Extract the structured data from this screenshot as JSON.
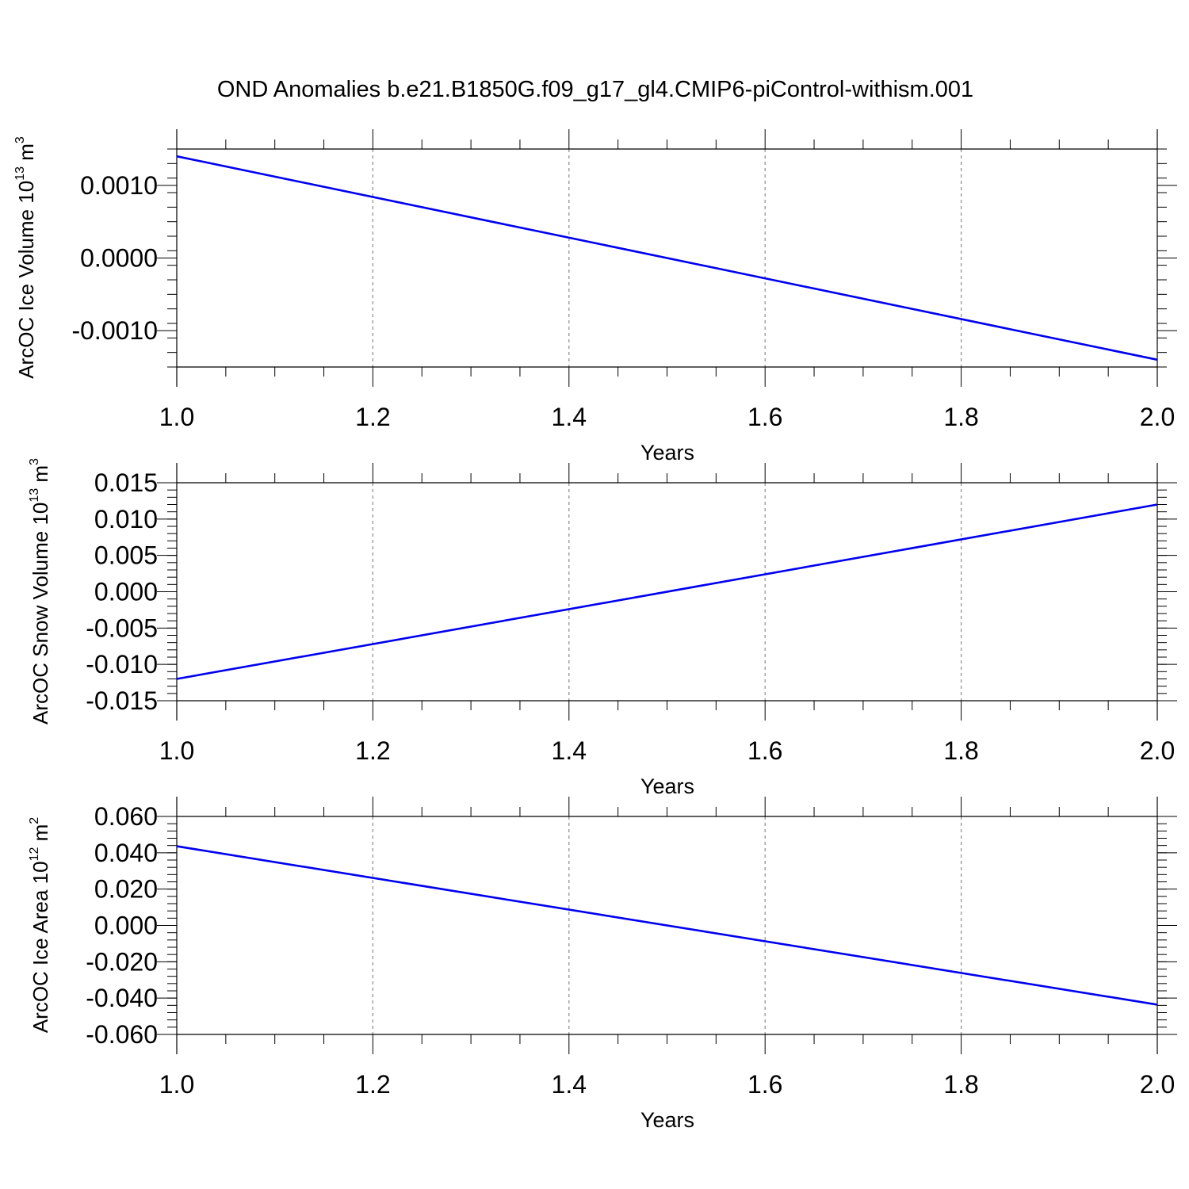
{
  "title": "OND Anomalies b.e21.B1850G.f09_g17_gl4.CMIP6-piControl-withism.001",
  "chart_data": [
    {
      "type": "line",
      "ylabel": {
        "text": "ArcOC Ice Volume 10",
        "sup": "13",
        "unit": " m",
        "unit_sup": "3"
      },
      "xlabel": "Years",
      "xlim": [
        1.0,
        2.0
      ],
      "ylim": [
        -0.0015,
        0.0015
      ],
      "x_ticks": [
        "1.0",
        "1.2",
        "1.4",
        "1.6",
        "1.8",
        "2.0"
      ],
      "y_ticks": [
        "-0.0010",
        "0.0000",
        "0.0010"
      ],
      "y_tick_values": [
        -0.001,
        0.0,
        0.001
      ],
      "x_minor_step": 0.05,
      "y_minor_step": 0.0002,
      "grid": "vertical-dashed",
      "series": [
        {
          "x": [
            1.0,
            2.0
          ],
          "values": [
            0.0014,
            -0.0014
          ],
          "color": "#0000ee"
        }
      ]
    },
    {
      "type": "line",
      "ylabel": {
        "text": "ArcOC Snow Volume 10",
        "sup": "13",
        "unit": " m",
        "unit_sup": "3"
      },
      "xlabel": "Years",
      "xlim": [
        1.0,
        2.0
      ],
      "ylim": [
        -0.015,
        0.015
      ],
      "x_ticks": [
        "1.0",
        "1.2",
        "1.4",
        "1.6",
        "1.8",
        "2.0"
      ],
      "y_ticks": [
        "-0.015",
        "-0.010",
        "-0.005",
        "0.000",
        "0.005",
        "0.010",
        "0.015"
      ],
      "y_tick_values": [
        -0.015,
        -0.01,
        -0.005,
        0.0,
        0.005,
        0.01,
        0.015
      ],
      "x_minor_step": 0.05,
      "y_minor_step": 0.001,
      "grid": "vertical-dashed",
      "series": [
        {
          "x": [
            1.0,
            2.0
          ],
          "values": [
            -0.012,
            0.012
          ],
          "color": "#0000ee"
        }
      ]
    },
    {
      "type": "line",
      "ylabel": {
        "text": "ArcOC Ice Area 10",
        "sup": "12",
        "unit": " m",
        "unit_sup": "2"
      },
      "xlabel": "Years",
      "xlim": [
        1.0,
        2.0
      ],
      "ylim": [
        -0.06,
        0.06
      ],
      "x_ticks": [
        "1.0",
        "1.2",
        "1.4",
        "1.6",
        "1.8",
        "2.0"
      ],
      "y_ticks": [
        "-0.060",
        "-0.040",
        "-0.020",
        "0.000",
        "0.020",
        "0.040",
        "0.060"
      ],
      "y_tick_values": [
        -0.06,
        -0.04,
        -0.02,
        0.0,
        0.02,
        0.04,
        0.06
      ],
      "x_minor_step": 0.05,
      "y_minor_step": 0.004,
      "grid": "vertical-dashed",
      "series": [
        {
          "x": [
            1.0,
            2.0
          ],
          "values": [
            0.0436,
            -0.0436
          ],
          "color": "#0000ee"
        }
      ]
    }
  ]
}
